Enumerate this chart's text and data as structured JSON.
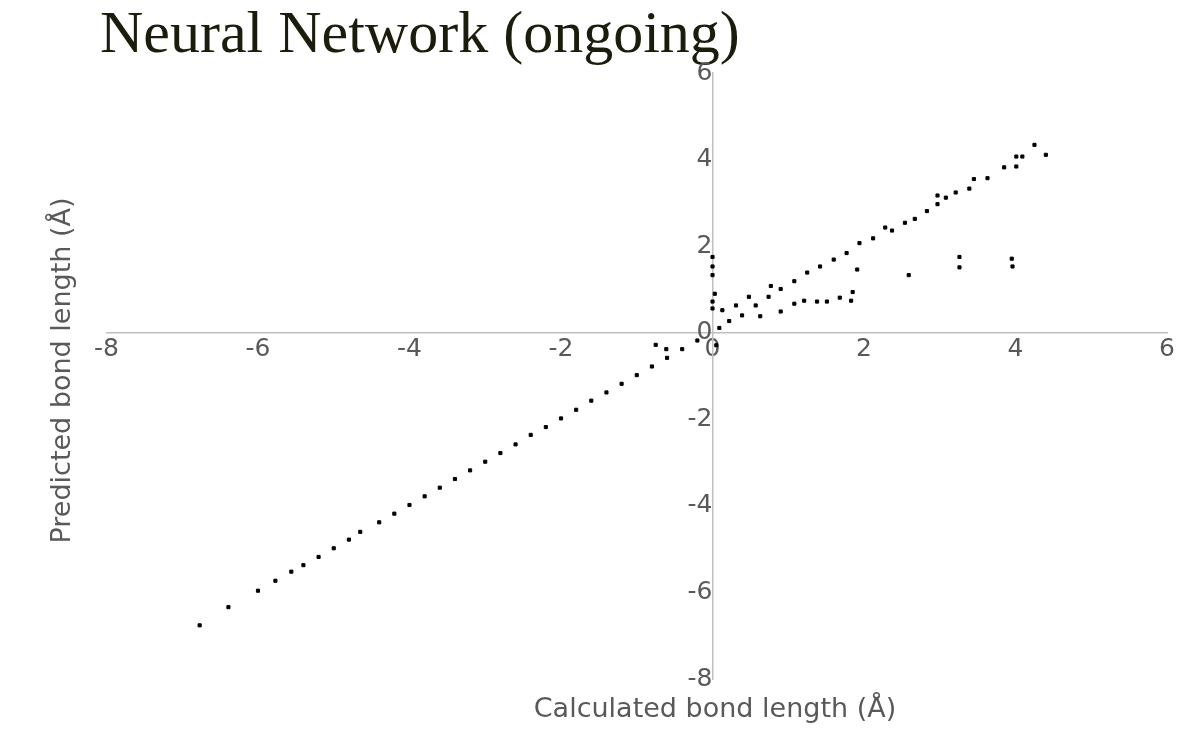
{
  "chart_data": {
    "type": "scatter",
    "title": "Neural Network (ongoing)",
    "xlabel": "Calculated bond length (Å)",
    "ylabel": "Predicted bond length (Å)",
    "xlim": [
      -8,
      6
    ],
    "ylim": [
      -8,
      6
    ],
    "xticks": [
      -8,
      -6,
      -4,
      -2,
      0,
      2,
      4,
      6
    ],
    "yticks": [
      -8,
      -6,
      -4,
      -2,
      0,
      2,
      4,
      6
    ],
    "grid": false,
    "legend": false,
    "marker": "square",
    "series": [
      {
        "color": "#000000",
        "x": [
          -6.77,
          -6.39,
          -6.0,
          -5.77,
          -5.56,
          -5.4,
          -5.2,
          -5.0,
          -4.8,
          -4.65,
          -4.4,
          -4.2,
          -4.0,
          -3.8,
          -3.6,
          -3.4,
          -3.2,
          -3.0,
          -2.8,
          -2.6,
          -2.4,
          -2.2,
          -2.0,
          -1.8,
          -1.6,
          -1.4,
          -1.2,
          -1.0,
          -0.8,
          -0.6,
          -0.4,
          -0.2,
          -0.75,
          -0.61,
          0.05,
          0.09,
          0.22,
          0.39,
          0.57,
          0.74,
          0.9,
          1.08,
          1.25,
          1.42,
          1.6,
          1.77,
          1.94,
          2.12,
          2.28,
          2.37,
          2.54,
          2.67,
          2.83,
          2.97,
          2.97,
          3.08,
          3.21,
          3.39,
          3.45,
          3.63,
          3.85,
          4.01,
          4.01,
          4.09,
          4.25,
          4.4,
          3.26,
          3.26,
          3.95,
          3.96,
          2.59,
          1.91,
          1.85,
          1.83,
          1.68,
          1.51,
          1.38,
          1.21,
          1.08,
          0.9,
          0.77,
          0.63,
          0.48,
          0.31,
          0.13,
          0.0,
          0.0,
          0.0,
          0.03,
          0.0,
          0.0
        ],
        "values": [
          -6.76,
          -6.34,
          -5.96,
          -5.73,
          -5.52,
          -5.37,
          -5.18,
          -4.98,
          -4.78,
          -4.6,
          -4.38,
          -4.18,
          -3.98,
          -3.78,
          -3.58,
          -3.38,
          -3.18,
          -2.98,
          -2.78,
          -2.58,
          -2.36,
          -2.18,
          -1.98,
          -1.78,
          -1.57,
          -1.38,
          -1.18,
          -0.98,
          -0.78,
          -0.58,
          -0.38,
          -0.18,
          -0.28,
          -0.38,
          -0.29,
          0.11,
          0.27,
          0.4,
          0.63,
          0.83,
          1.01,
          1.19,
          1.39,
          1.53,
          1.69,
          1.84,
          2.07,
          2.18,
          2.43,
          2.36,
          2.54,
          2.63,
          2.81,
          2.97,
          3.17,
          3.12,
          3.24,
          3.33,
          3.55,
          3.57,
          3.82,
          3.84,
          4.07,
          4.07,
          4.34,
          4.11,
          1.75,
          1.51,
          1.71,
          1.53,
          1.33,
          1.46,
          0.94,
          0.74,
          0.81,
          0.72,
          0.72,
          0.74,
          0.67,
          0.49,
          1.08,
          0.38,
          0.83,
          0.63,
          0.52,
          1.75,
          1.53,
          1.33,
          0.9,
          0.72,
          0.56
        ]
      }
    ]
  }
}
